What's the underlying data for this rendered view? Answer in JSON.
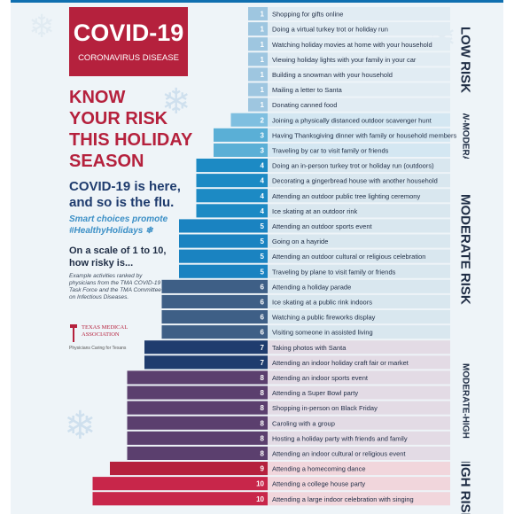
{
  "header": {
    "covid_title": "COVID-19",
    "covid_subtitle": "CORONAVIRUS DISEASE",
    "know_lines": [
      "KNOW",
      "YOUR RISK",
      "THIS HOLIDAY",
      "SEASON"
    ],
    "here_lines": [
      "COVID-19 is here,",
      "and so is the flu."
    ],
    "smart_lines": [
      "Smart choices promote",
      "#HealthyHolidays"
    ],
    "scale_lines": [
      "On a scale of 1 to 10,",
      "how risky is..."
    ],
    "example_text": "Example activities ranked by physicians from the TMA COVID-19 Task Force and the TMA Committee on Infectious Diseases.",
    "tma_name_lines": [
      "TEXAS MEDICAL",
      "ASSOCIATION"
    ],
    "tma_tagline": "Physicians Caring for Texans"
  },
  "zones": [
    {
      "label": "LOW RISK",
      "start": 0,
      "end": 7
    },
    {
      "label": "LOW-MODERATE",
      "start": 7,
      "end": 10
    },
    {
      "label": "MODERATE RISK",
      "start": 10,
      "end": 22
    },
    {
      "label": "MODERATE-HIGH",
      "start": 22,
      "end": 30
    },
    {
      "label": "HIGH RISK",
      "start": 30,
      "end": 34
    }
  ],
  "colors": {
    "score_1": "#9ec6e0",
    "score_2": "#7fbfe0",
    "score_3": "#5aafd6",
    "score_4": "#1c8ac4",
    "score_5": "#1a83c1",
    "score_6": "#3e5f86",
    "score_7": "#1f3c6e",
    "score_8": "#5b3f6e",
    "score_9": "#b5213d",
    "score_10": "#c8264a",
    "zone_low": "#e1ecf3",
    "zone_lowmod": "#d4e7f2",
    "zone_mod": "#d9e7ef",
    "zone_modhigh": "#e3dbe5",
    "zone_high": "#f1d6dc"
  },
  "chart_data": {
    "type": "bar",
    "orientation": "horizontal",
    "title": "",
    "xlabel": "",
    "ylabel": "",
    "xlim": [
      0,
      10
    ],
    "categories": [
      "Shopping for gifts online",
      "Doing a virtual turkey trot or holiday run",
      "Watching holiday movies at home with your household",
      "Viewing holiday lights with your family in your car",
      "Building a snowman with your household",
      "Mailing a letter to Santa",
      "Donating canned food",
      "Joining a physically distanced outdoor scavenger hunt",
      "Having Thanksgiving dinner with family or household members",
      "Traveling by car to visit family or friends",
      "Doing an in-person turkey trot or holiday run (outdoors)",
      "Decorating a gingerbread house with another household",
      "Attending an outdoor public tree lighting ceremony",
      "Ice skating at an outdoor rink",
      "Attending an outdoor sports event",
      "Going on a hayride",
      "Attending an outdoor cultural or religious celebration",
      "Traveling by plane to visit family or friends",
      "Attending a holiday parade",
      "Ice skating at a public rink indoors",
      "Watching a public fireworks display",
      "Visiting someone in assisted living",
      "Taking photos with Santa",
      "Attending an indoor holiday craft fair or market",
      "Attending an indoor sports event",
      "Attending a Super Bowl party",
      "Shopping in-person on Black Friday",
      "Caroling with a group",
      "Hosting a holiday party with friends and family",
      "Attending an indoor cultural or religious event",
      "Attending a homecoming dance",
      "Attending a college house party",
      "Attending a large indoor celebration with singing"
    ],
    "values": [
      1,
      1,
      1,
      1,
      1,
      1,
      1,
      2,
      3,
      3,
      4,
      4,
      4,
      4,
      5,
      5,
      5,
      5,
      6,
      6,
      6,
      6,
      7,
      7,
      8,
      8,
      8,
      8,
      8,
      8,
      9,
      10,
      10
    ]
  }
}
